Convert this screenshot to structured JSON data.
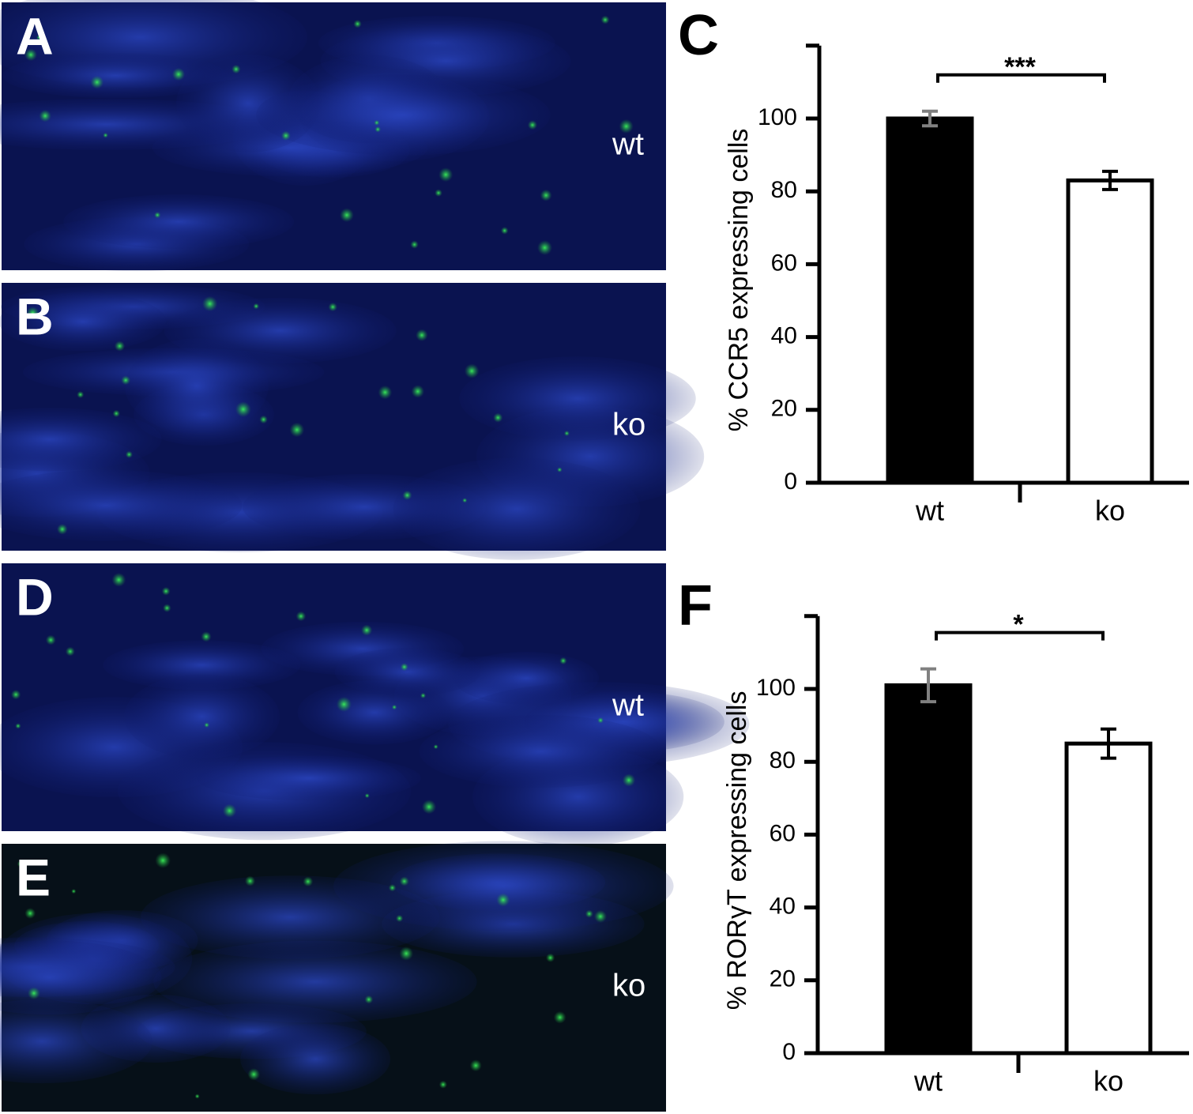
{
  "panels": [
    {
      "letter": "A",
      "label": "wt"
    },
    {
      "letter": "B",
      "label": "ko"
    },
    {
      "letter": "D",
      "label": "wt"
    },
    {
      "letter": "E",
      "label": "ko"
    }
  ],
  "chart_data": [
    {
      "type": "bar",
      "letter": "C",
      "ylabel": "% CCR5 expressing cells",
      "categories": [
        "wt",
        "ko"
      ],
      "values": [
        100,
        83
      ],
      "errors": [
        2,
        2.5
      ],
      "colors": [
        "#000000",
        "#ffffff"
      ],
      "error_colors": [
        "#808080",
        "#000000"
      ],
      "significance": "***",
      "ylim": [
        0,
        120
      ],
      "yticks": [
        0,
        20,
        40,
        60,
        80,
        100
      ]
    },
    {
      "type": "bar",
      "letter": "F",
      "ylabel": "% RORγT expressing cells",
      "categories": [
        "wt",
        "ko"
      ],
      "values": [
        101,
        85
      ],
      "errors": [
        4.5,
        4
      ],
      "colors": [
        "#000000",
        "#ffffff"
      ],
      "error_colors": [
        "#808080",
        "#000000"
      ],
      "significance": "*",
      "ylim": [
        0,
        120
      ],
      "yticks": [
        0,
        20,
        40,
        60,
        80,
        100
      ]
    }
  ]
}
